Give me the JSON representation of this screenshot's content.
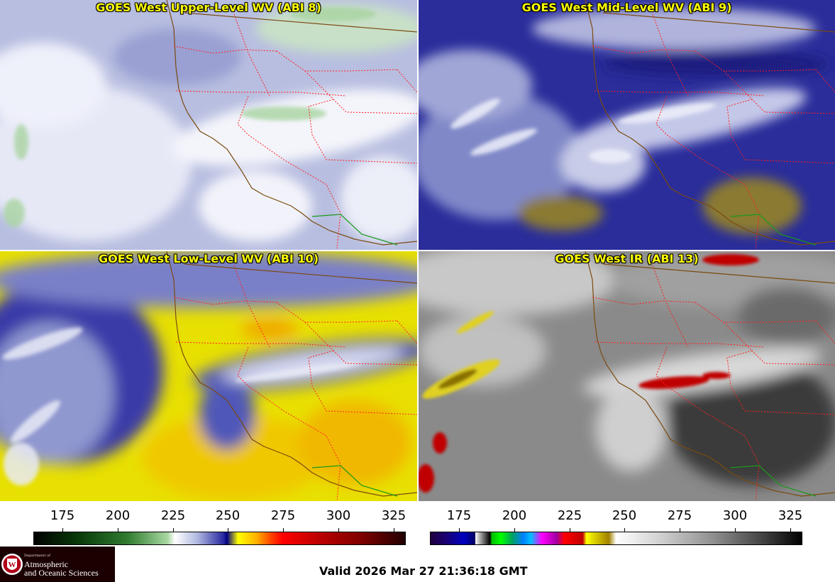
{
  "panels": [
    {
      "title": "GOES West Upper-Level WV (ABI 8)",
      "style": "upper"
    },
    {
      "title": "GOES West Mid-Level WV (ABI 9)",
      "style": "mid"
    },
    {
      "title": "GOES West Low-Level WV (ABI 10)",
      "style": "low"
    },
    {
      "title": "GOES West IR (ABI 13)",
      "style": "ir"
    }
  ],
  "colorbar_left": {
    "ticks": [
      "175",
      "200",
      "225",
      "250",
      "275",
      "300",
      "325"
    ]
  },
  "colorbar_right": {
    "ticks": [
      "175",
      "200",
      "225",
      "250",
      "275",
      "300",
      "325"
    ]
  },
  "logo": {
    "dept_line": "Department of",
    "line1": "Atmospheric",
    "line2": "and Oceanic Sciences",
    "seal_icon": "university-seal-icon"
  },
  "valid_text": "Valid 2026 Mar 27 21:36:18 GMT",
  "colors": {
    "title_text": "#ffff00",
    "state_border": "#ff2020",
    "coastline": "#7a4a10",
    "mexico_border": "#1a9a1a"
  }
}
